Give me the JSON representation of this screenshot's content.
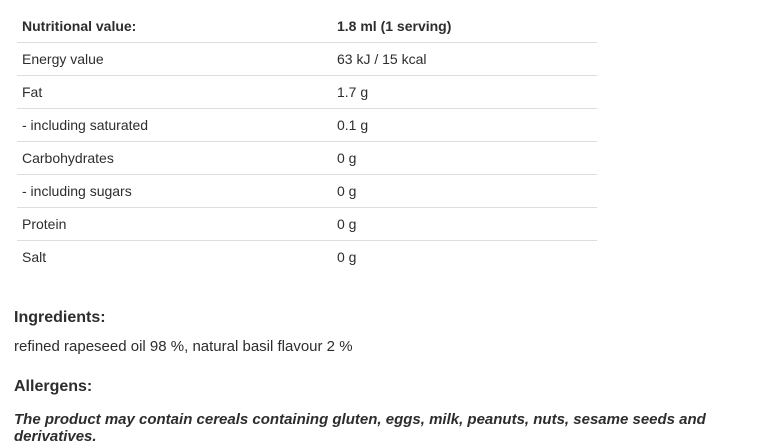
{
  "nutrition_table": {
    "header": {
      "label": "Nutritional value:",
      "value": "1.8 ml (1 serving)"
    },
    "rows": [
      {
        "label": "Energy value",
        "value": "63 kJ / 15 kcal"
      },
      {
        "label": "Fat",
        "value": "1.7 g"
      },
      {
        "label": "- including saturated",
        "value": "0.1 g"
      },
      {
        "label": "Carbohydrates",
        "value": "0 g"
      },
      {
        "label": "- including sugars",
        "value": "0 g"
      },
      {
        "label": "Protein",
        "value": "0 g"
      },
      {
        "label": "Salt",
        "value": "0 g"
      }
    ]
  },
  "ingredients": {
    "heading": "Ingredients:",
    "text": "refined rapeseed oil 98 %, natural basil flavour 2 %"
  },
  "allergens": {
    "heading": "Allergens:",
    "text": "The product may contain cereals containing gluten, eggs, milk, peanuts, nuts, sesame seeds and derivatives."
  },
  "colors": {
    "text": "#2d2d2d",
    "table_border": "#dddddd"
  }
}
